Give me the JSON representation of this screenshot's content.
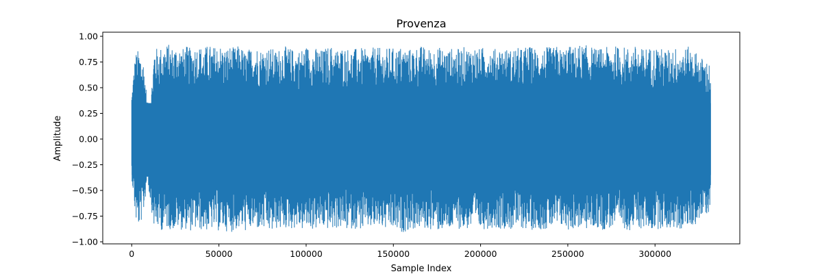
{
  "chart_data": {
    "type": "line",
    "title": "Provenza",
    "xlabel": "Sample Index",
    "ylabel": "Amplitude",
    "xlim": [
      -16600,
      348600
    ],
    "ylim": [
      -1.02,
      1.04
    ],
    "x_ticks": [
      0,
      50000,
      100000,
      150000,
      200000,
      250000,
      300000
    ],
    "x_tick_labels": [
      "0",
      "50000",
      "100000",
      "150000",
      "200000",
      "250000",
      "300000"
    ],
    "y_ticks": [
      -1.0,
      -0.75,
      -0.5,
      -0.25,
      0.0,
      0.25,
      0.5,
      0.75,
      1.0
    ],
    "y_tick_labels": [
      "−1.00",
      "−0.75",
      "−0.50",
      "−0.25",
      "0.00",
      "0.25",
      "0.50",
      "0.75",
      "1.00"
    ],
    "grid": false,
    "series": [
      {
        "color": "#1f77b4",
        "x_start": 0,
        "x_end": 332000,
        "envelope": {
          "x": [
            0,
            1000,
            2000,
            3000,
            5000,
            7000,
            9000,
            11000,
            13000,
            15000,
            17000,
            19000,
            21000,
            23000,
            25000,
            27000,
            29000,
            31000,
            33000,
            35000,
            38000,
            41000,
            44000,
            47000,
            50000,
            53000,
            56000,
            59000,
            62000,
            65000,
            68000,
            71000,
            74000,
            77000,
            80000,
            83000,
            86000,
            89000,
            92000,
            95000,
            98000,
            100000,
            102000,
            104000,
            106000,
            109000,
            112000,
            115000,
            118000,
            121000,
            124000,
            127000,
            130000,
            133000,
            136000,
            139000,
            142000,
            145000,
            148000,
            151000,
            154000,
            157000,
            160000,
            163000,
            166000,
            169000,
            172000,
            175000,
            178000,
            181000,
            184000,
            187000,
            190000,
            193000,
            196000,
            199000,
            202000,
            205000,
            208000,
            211000,
            214000,
            217000,
            220000,
            223000,
            226000,
            229000,
            232000,
            235000,
            238000,
            241000,
            244000,
            247000,
            250000,
            253000,
            256000,
            259000,
            262000,
            265000,
            268000,
            271000,
            274000,
            277000,
            280000,
            283000,
            286000,
            289000,
            292000,
            295000,
            298000,
            301000,
            304000,
            307000,
            310000,
            313000,
            316000,
            319000,
            322000,
            325000,
            328000,
            331000,
            332000
          ],
          "max": [
            0.45,
            0.65,
            0.82,
            0.87,
            0.85,
            0.75,
            0.35,
            0.4,
            0.91,
            0.88,
            0.9,
            0.92,
            0.93,
            0.9,
            0.91,
            0.92,
            0.88,
            0.91,
            0.89,
            0.9,
            0.92,
            0.89,
            0.92,
            0.9,
            0.93,
            0.88,
            0.91,
            0.89,
            0.92,
            0.85,
            0.89,
            0.91,
            0.88,
            0.9,
            0.89,
            0.86,
            0.91,
            0.9,
            0.88,
            0.86,
            0.89,
            0.91,
            0.9,
            0.88,
            0.89,
            0.87,
            0.9,
            0.91,
            0.88,
            0.9,
            0.89,
            0.87,
            0.9,
            0.88,
            0.86,
            0.9,
            0.89,
            0.87,
            0.9,
            0.88,
            0.9,
            0.89,
            0.88,
            0.9,
            0.91,
            0.89,
            0.88,
            0.9,
            0.89,
            0.87,
            0.89,
            0.88,
            0.9,
            0.89,
            0.91,
            0.88,
            0.9,
            0.89,
            0.88,
            0.9,
            0.89,
            0.87,
            0.9,
            0.88,
            0.91,
            0.9,
            0.89,
            0.88,
            0.9,
            0.89,
            0.91,
            0.87,
            0.92,
            0.89,
            0.93,
            0.91,
            0.92,
            0.89,
            0.88,
            0.9,
            0.89,
            0.91,
            0.9,
            0.9,
            0.89,
            0.91,
            0.88,
            0.9,
            0.89,
            0.91,
            0.88,
            0.87,
            0.9,
            0.89,
            0.88,
            0.9,
            0.88,
            0.82,
            0.78,
            0.75,
            0.74
          ],
          "min": [
            -0.38,
            -0.55,
            -0.75,
            -0.86,
            -0.84,
            -0.7,
            -0.4,
            -0.65,
            -0.88,
            -0.87,
            -0.89,
            -0.88,
            -0.87,
            -0.89,
            -0.88,
            -0.87,
            -0.89,
            -0.88,
            -0.9,
            -0.89,
            -0.88,
            -0.9,
            -0.89,
            -0.88,
            -0.9,
            -0.88,
            -0.92,
            -0.89,
            -0.88,
            -0.9,
            -0.89,
            -0.87,
            -0.9,
            -0.89,
            -0.92,
            -0.88,
            -0.89,
            -0.87,
            -0.88,
            -0.86,
            -0.89,
            -0.88,
            -0.87,
            -0.89,
            -0.88,
            -0.87,
            -0.88,
            -0.89,
            -0.87,
            -0.88,
            -0.89,
            -0.87,
            -0.88,
            -0.89,
            -0.87,
            -0.88,
            -0.86,
            -0.89,
            -0.88,
            -0.9,
            -0.92,
            -0.9,
            -0.89,
            -0.88,
            -0.87,
            -0.89,
            -0.88,
            -0.9,
            -0.89,
            -0.91,
            -0.88,
            -0.87,
            -0.89,
            -0.88,
            -0.87,
            -0.89,
            -0.88,
            -0.87,
            -0.86,
            -0.88,
            -0.87,
            -0.89,
            -0.88,
            -0.87,
            -0.88,
            -0.89,
            -0.87,
            -0.88,
            -0.89,
            -0.87,
            -0.88,
            -0.86,
            -0.89,
            -0.88,
            -0.87,
            -0.89,
            -0.88,
            -0.87,
            -0.88,
            -0.89,
            -0.87,
            -0.88,
            -0.86,
            -0.88,
            -0.89,
            -0.87,
            -0.88,
            -0.87,
            -0.89,
            -0.88,
            -0.87,
            -0.88,
            -0.87,
            -0.89,
            -0.88,
            -0.86,
            -0.85,
            -0.8,
            -0.75,
            -0.72,
            -0.7
          ]
        }
      }
    ]
  }
}
